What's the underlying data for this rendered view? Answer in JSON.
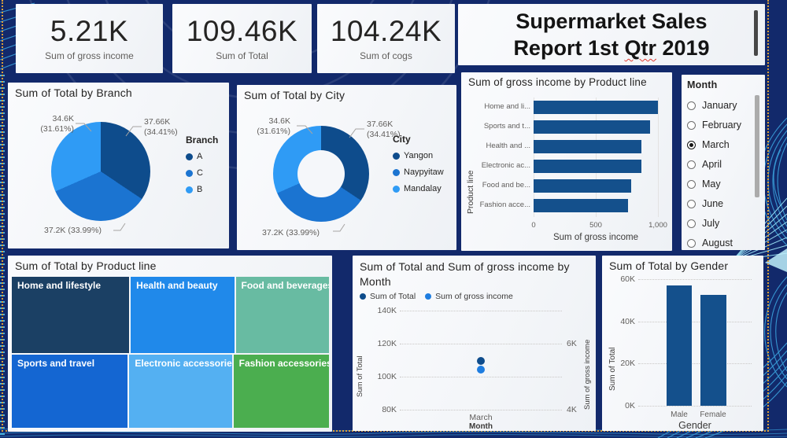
{
  "theme": {
    "page_bg": "#12296B",
    "card_bg": "#F5F7FA",
    "selection_dotted": "#DA9E3A",
    "decor_line": "#3FB0EA",
    "decor_bright": "#9BE4F6",
    "accent_dark": "#0E4C8C",
    "accent_mid": "#1B74D1",
    "accent_light": "#2F9BF5",
    "bar_color": "#14508C",
    "text_dark": "#252423",
    "text_gray": "#605E5C"
  },
  "kpis": [
    {
      "value": "5.21K",
      "label": "Sum of gross income"
    },
    {
      "value": "109.46K",
      "label": "Sum of Total"
    },
    {
      "value": "104.24K",
      "label": "Sum of cogs"
    }
  ],
  "report_title": {
    "line1": "Supermarket Sales",
    "line2_pre": "Report 1st ",
    "line2_misspelled": "Qtr",
    "line2_post": " 2019"
  },
  "month_slicer": {
    "title": "Month",
    "items": [
      {
        "label": "January",
        "selected": false
      },
      {
        "label": "February",
        "selected": false
      },
      {
        "label": "March",
        "selected": true
      },
      {
        "label": "April",
        "selected": false
      },
      {
        "label": "May",
        "selected": false
      },
      {
        "label": "June",
        "selected": false
      },
      {
        "label": "July",
        "selected": false
      },
      {
        "label": "August",
        "selected": false
      }
    ]
  },
  "chart_data": [
    {
      "id": "branch_pie",
      "type": "pie",
      "title": "Sum of Total by Branch",
      "legend_title": "Branch",
      "legend_position": "right",
      "categories": [
        "A",
        "C",
        "B"
      ],
      "values": [
        37660,
        37200,
        34600
      ],
      "percents": [
        34.41,
        33.99,
        31.61
      ],
      "colors": [
        "#0E4C8C",
        "#1B74D1",
        "#2F9BF5"
      ],
      "labels": {
        "a1": "37.66K",
        "a2": "(34.41%)",
        "c": "37.2K (33.99%)",
        "b1": "34.6K",
        "b2": "(31.61%)"
      }
    },
    {
      "id": "city_donut",
      "type": "pie",
      "subtype": "donut",
      "title": "Sum of Total by City",
      "legend_title": "City",
      "legend_position": "right",
      "categories": [
        "Yangon",
        "Naypyitaw",
        "Mandalay"
      ],
      "values": [
        37660,
        37200,
        34600
      ],
      "percents": [
        34.41,
        33.99,
        31.61
      ],
      "colors": [
        "#0E4C8C",
        "#1B74D1",
        "#2F9BF5"
      ],
      "labels": {
        "a1": "37.66K",
        "a2": "(34.41%)",
        "c": "37.2K (33.99%)",
        "b1": "34.6K",
        "b2": "(31.61%)"
      }
    },
    {
      "id": "productline_bar",
      "type": "bar",
      "orientation": "horizontal",
      "title": "Sum of gross income by Product line",
      "xlabel": "Sum of gross income",
      "ylabel": "Product line",
      "categories": [
        "Home and li...",
        "Sports and t...",
        "Health and ...",
        "Electronic ac...",
        "Food and be...",
        "Fashion acce..."
      ],
      "values": [
        1000,
        935,
        870,
        865,
        785,
        760
      ],
      "xticks": [
        "0",
        "500",
        "1,000"
      ],
      "xlim": [
        0,
        1000
      ],
      "grid": true,
      "bar_color": "#14508C"
    },
    {
      "id": "treemap",
      "type": "treemap",
      "title": "Sum of Total by Product line",
      "categories": [
        "Home and lifestyle",
        "Health and beauty",
        "Food and beverages",
        "Sports and travel",
        "Electronic accessories",
        "Fashion accessories"
      ],
      "values": [
        20900,
        18400,
        16600,
        19800,
        17500,
        16300
      ],
      "colors": [
        "#1B4064",
        "#2089EA",
        "#68BBA2",
        "#1466D2",
        "#54B0F2",
        "#4BAE4F"
      ]
    },
    {
      "id": "month_combo",
      "type": "scatter",
      "title": "Sum of Total and Sum of gross income by Month",
      "xlabel": "Month",
      "x": [
        "March"
      ],
      "left_ylabel": "Sum of Total",
      "right_ylabel": "Sum of gross income",
      "left_yticks": [
        "140K",
        "120K",
        "100K",
        "80K"
      ],
      "right_yticks": [
        "6K",
        "4K"
      ],
      "left_ylim": [
        80000,
        140000
      ],
      "right_ylim": [
        4000,
        7000
      ],
      "grid": true,
      "legend_position": "top",
      "series": [
        {
          "name": "Sum of Total",
          "axis": "left",
          "color": "#0E4C8C",
          "values": [
            109460
          ]
        },
        {
          "name": "Sum of gross income",
          "axis": "right",
          "color": "#1E7DE0",
          "values": [
            5210
          ]
        }
      ]
    },
    {
      "id": "gender_bar",
      "type": "bar",
      "orientation": "vertical",
      "title": "Sum of Total by Gender",
      "xlabel": "Gender",
      "ylabel": "Sum of Total",
      "categories": [
        "Male",
        "Female"
      ],
      "values": [
        57000,
        52500
      ],
      "yticks": [
        "60K",
        "40K",
        "20K",
        "0K"
      ],
      "ylim": [
        0,
        60000
      ],
      "grid": true,
      "bar_color": "#14508C"
    }
  ]
}
